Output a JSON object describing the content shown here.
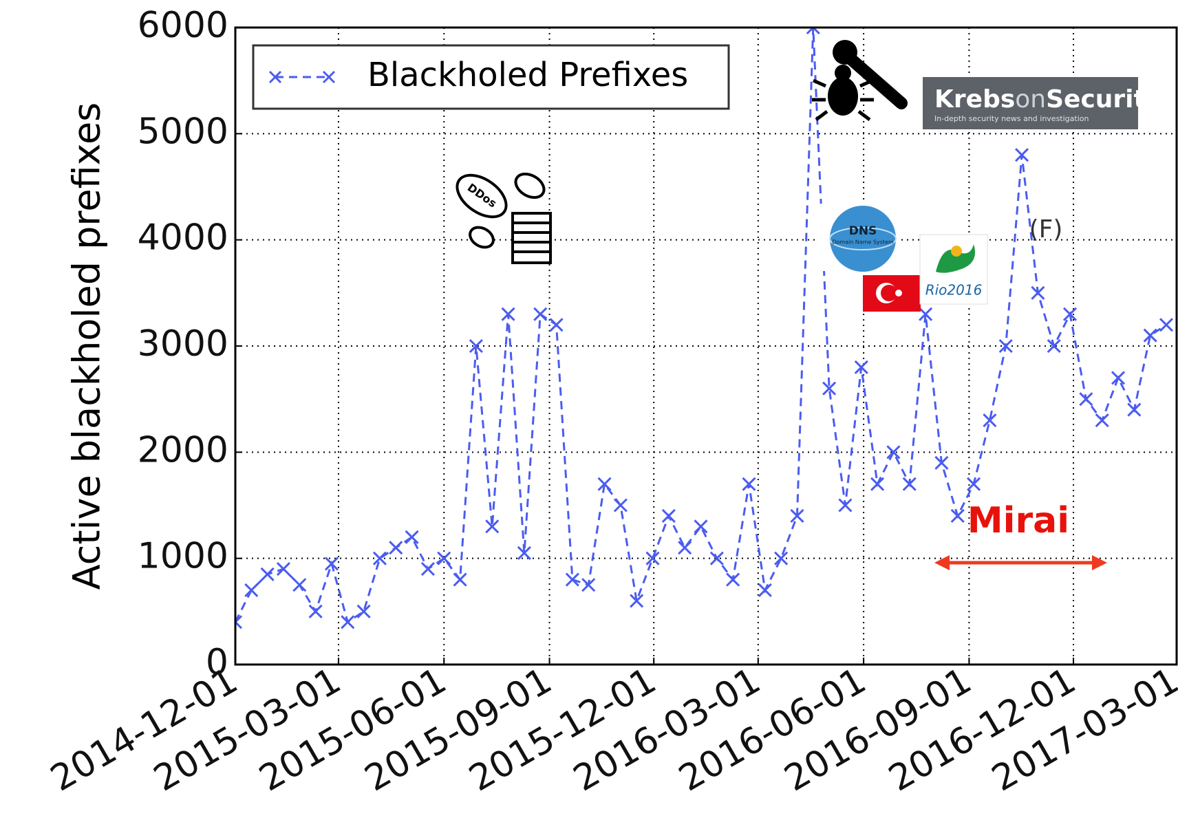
{
  "chart_data": {
    "type": "line",
    "ylabel": "Active blackholed prefixes",
    "x": [
      "2014-12-01",
      "2014-12-15",
      "2014-12-29",
      "2015-01-12",
      "2015-01-26",
      "2015-02-09",
      "2015-02-23",
      "2015-03-09",
      "2015-03-23",
      "2015-04-06",
      "2015-04-20",
      "2015-05-04",
      "2015-05-18",
      "2015-06-01",
      "2015-06-15",
      "2015-06-29",
      "2015-07-13",
      "2015-07-27",
      "2015-08-10",
      "2015-08-24",
      "2015-09-07",
      "2015-09-21",
      "2015-10-05",
      "2015-10-19",
      "2015-11-02",
      "2015-11-16",
      "2015-11-30",
      "2015-12-14",
      "2015-12-28",
      "2016-01-11",
      "2016-01-25",
      "2016-02-08",
      "2016-02-22",
      "2016-03-07",
      "2016-03-21",
      "2016-04-04",
      "2016-04-18",
      "2016-05-02",
      "2016-05-16",
      "2016-05-30",
      "2016-06-13",
      "2016-06-27",
      "2016-07-11",
      "2016-07-25",
      "2016-08-08",
      "2016-08-22",
      "2016-09-05",
      "2016-09-19",
      "2016-10-03",
      "2016-10-17",
      "2016-10-31",
      "2016-11-14",
      "2016-11-28",
      "2016-12-12",
      "2016-12-26",
      "2017-01-09",
      "2017-01-23",
      "2017-02-06",
      "2017-02-20"
    ],
    "series": [
      {
        "name": "Blackholed Prefixes",
        "color": "#4a5cf0",
        "values": [
          400,
          700,
          850,
          900,
          750,
          500,
          950,
          400,
          500,
          1000,
          1100,
          1200,
          900,
          1000,
          800,
          3000,
          1300,
          3300,
          1050,
          3300,
          3200,
          800,
          750,
          1700,
          1500,
          600,
          1000,
          1400,
          1100,
          1300,
          1000,
          800,
          1700,
          700,
          1000,
          1400,
          6000,
          2600,
          1500,
          2800,
          1700,
          2000,
          1700,
          3300,
          1900,
          1400,
          1700,
          2300,
          3000,
          4800,
          3500,
          3000,
          3300,
          2500,
          2300,
          2700,
          2400,
          3100,
          3200
        ]
      }
    ],
    "xlim": [
      "2014-12-01",
      "2017-03-01"
    ],
    "xticks": [
      "2014-12-01",
      "2015-03-01",
      "2015-06-01",
      "2015-09-01",
      "2015-12-01",
      "2016-03-01",
      "2016-06-01",
      "2016-09-01",
      "2016-12-01",
      "2017-03-01"
    ],
    "ylim": [
      0,
      6000
    ],
    "yticks": [
      0,
      1000,
      2000,
      3000,
      4000,
      5000,
      6000
    ],
    "grid": true,
    "legend": "upper left",
    "annotations": {
      "mirai": "Mirai",
      "f": "(F)",
      "krebs": "Krebs",
      "krebs_on": "on",
      "krebs_security": "Security",
      "krebs_tagline": "In-depth security news and investigation",
      "dns": "DNS",
      "dns_sub": "Domain Name System",
      "ddos": "DDos",
      "rio": "Rio2016"
    }
  }
}
